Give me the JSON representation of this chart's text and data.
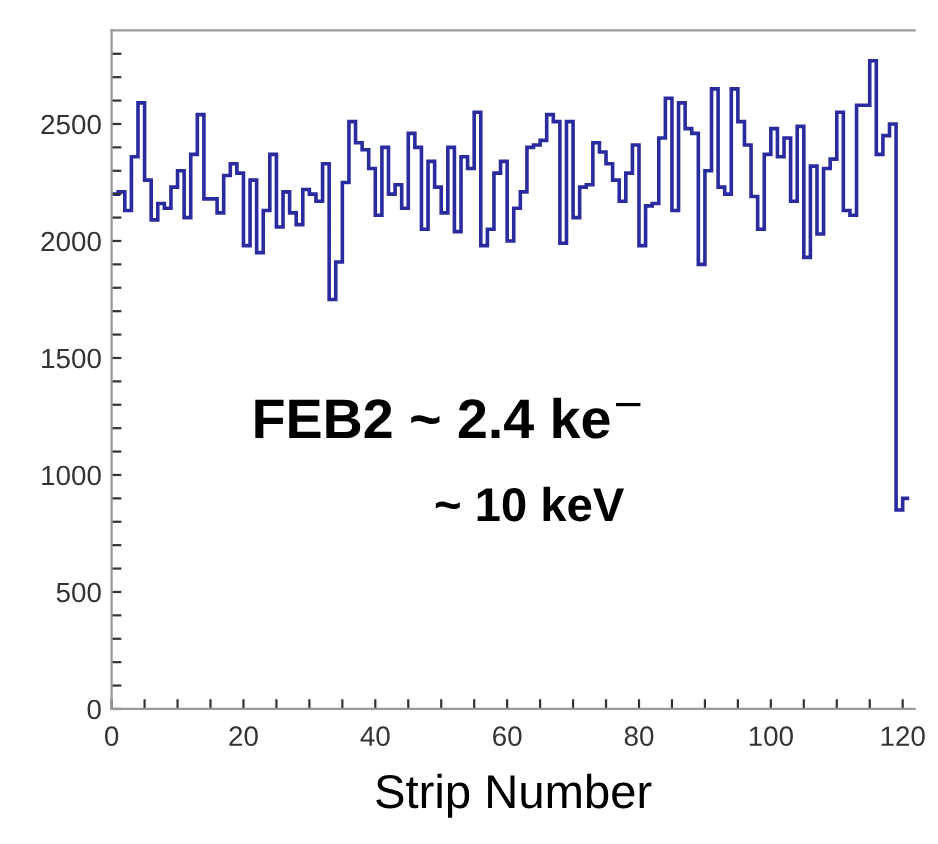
{
  "chart_data": {
    "type": "histogram",
    "xlabel": "Strip Number",
    "annotations": [
      "FEB2 ~ 2.4 ke$^{−}$",
      "~ 10 keV"
    ],
    "color": "#2b2ba0",
    "bins": [
      0,
      1,
      2,
      3,
      4,
      5,
      6,
      7,
      8,
      9,
      10,
      11,
      12,
      13,
      14,
      15,
      16,
      17,
      18,
      19,
      20,
      21,
      22,
      23,
      24,
      25,
      26,
      27,
      28,
      29,
      30,
      31,
      32,
      33,
      34,
      35,
      36,
      37,
      38,
      39,
      40,
      41,
      42,
      43,
      44,
      45,
      46,
      47,
      48,
      49,
      50,
      51,
      52,
      53,
      54,
      55,
      56,
      57,
      58,
      59,
      60,
      61,
      62,
      63,
      64,
      65,
      66,
      67,
      68,
      69,
      70,
      71,
      72,
      73,
      74,
      75,
      76,
      77,
      78,
      79,
      80,
      81,
      82,
      83,
      84,
      85,
      86,
      87,
      88,
      89,
      90,
      91,
      92,
      93,
      94,
      95,
      96,
      97,
      98,
      99,
      100,
      101,
      102,
      103,
      104,
      105,
      106,
      107,
      108,
      109,
      110,
      111,
      112,
      113,
      114,
      115,
      116,
      117,
      118,
      119,
      120,
      121
    ],
    "values": [
      2200,
      2210,
      2130,
      2360,
      2590,
      2260,
      2090,
      2160,
      2140,
      2230,
      2300,
      2100,
      2370,
      2540,
      2180,
      2180,
      2120,
      2280,
      2330,
      2290,
      1980,
      2260,
      1950,
      2130,
      2370,
      2060,
      2210,
      2120,
      2070,
      2220,
      2200,
      2170,
      2330,
      1750,
      1910,
      2250,
      2510,
      2420,
      2390,
      2310,
      2110,
      2400,
      2200,
      2240,
      2140,
      2460,
      2400,
      2050,
      2340,
      2230,
      2120,
      2400,
      2040,
      2360,
      2310,
      2550,
      1980,
      2050,
      2290,
      2340,
      2000,
      2140,
      2210,
      2400,
      2410,
      2430,
      2540,
      2510,
      1990,
      2510,
      2100,
      2230,
      2240,
      2420,
      2380,
      2330,
      2260,
      2170,
      2290,
      2410,
      1980,
      2150,
      2160,
      2440,
      2610,
      2130,
      2590,
      2480,
      2460,
      1900,
      2300,
      2650,
      2230,
      2200,
      2650,
      2510,
      2410,
      2190,
      2050,
      2370,
      2480,
      2360,
      2440,
      2170,
      2490,
      1930,
      2320,
      2030,
      2310,
      2350,
      2550,
      2130,
      2110,
      2580,
      2580,
      2770,
      2370,
      2450,
      2500,
      850,
      900
    ],
    "xlim": [
      0,
      121.8
    ],
    "xticks": [
      0,
      {
        "value": 5,
        "label": null
      },
      {
        "value": 10,
        "label": null
      },
      {
        "value": 15,
        "label": null
      },
      20,
      {
        "value": 25,
        "label": null
      },
      {
        "value": 30,
        "label": null
      },
      {
        "value": 35,
        "label": null
      },
      40,
      {
        "value": 45,
        "label": null
      },
      {
        "value": 50,
        "label": null
      },
      {
        "value": 55,
        "label": null
      },
      60,
      {
        "value": 65,
        "label": null
      },
      {
        "value": 70,
        "label": null
      },
      {
        "value": 75,
        "label": null
      },
      80,
      {
        "value": 85,
        "label": null
      },
      {
        "value": 90,
        "label": null
      },
      {
        "value": 95,
        "label": null
      },
      100,
      {
        "value": 105,
        "label": null
      },
      {
        "value": 110,
        "label": null
      },
      {
        "value": 115,
        "label": null
      },
      120
    ],
    "ylim": [
      0,
      2900
    ],
    "yticks": [
      0,
      {
        "value": 100,
        "label": null
      },
      {
        "value": 200,
        "label": null
      },
      {
        "value": 300,
        "label": null
      },
      {
        "value": 400,
        "label": null
      },
      500,
      {
        "value": 600,
        "label": null
      },
      {
        "value": 700,
        "label": null
      },
      {
        "value": 800,
        "label": null
      },
      {
        "value": 900,
        "label": null
      },
      1000,
      {
        "value": 1100,
        "label": null
      },
      {
        "value": 1200,
        "label": null
      },
      {
        "value": 1300,
        "label": null
      },
      {
        "value": 1400,
        "label": null
      },
      1500,
      {
        "value": 1600,
        "label": null
      },
      {
        "value": 1700,
        "label": null
      },
      {
        "value": 1800,
        "label": null
      },
      {
        "value": 1900,
        "label": null
      },
      2000,
      {
        "value": 2100,
        "label": null
      },
      {
        "value": 2200,
        "label": null
      },
      {
        "value": 2300,
        "label": null
      },
      {
        "value": 2400,
        "label": null
      },
      2500,
      {
        "value": 2600,
        "label": null
      },
      {
        "value": 2700,
        "label": null
      },
      {
        "value": 2800,
        "label": null
      }
    ],
    "grid": false,
    "legend": false
  }
}
